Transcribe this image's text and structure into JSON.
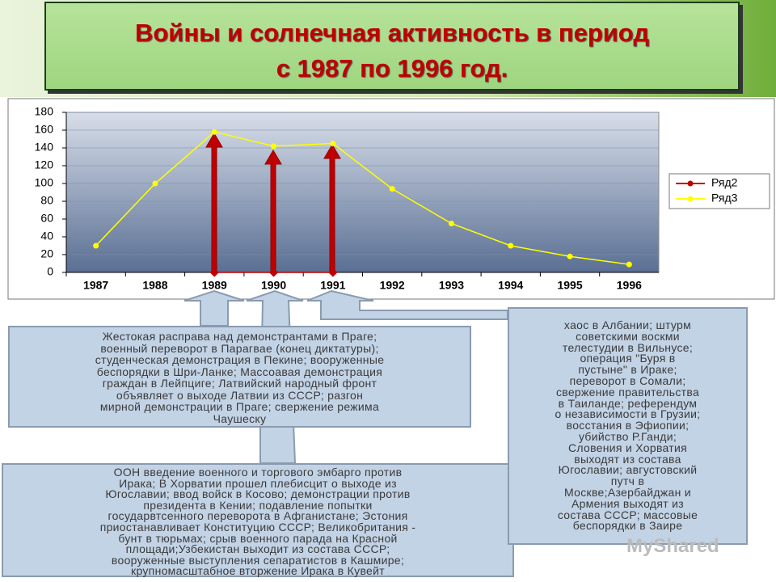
{
  "title": [
    "Войны и солнечная активность в период",
    "с 1987 по 1996 год."
  ],
  "chart_data": {
    "type": "line",
    "categories": [
      "1987",
      "1988",
      "1989",
      "1990",
      "1991",
      "1992",
      "1993",
      "1994",
      "1995",
      "1996"
    ],
    "series": [
      {
        "name": "Ряд2",
        "color": "#c00000",
        "values": [
          null,
          null,
          0,
          0,
          0,
          null,
          null,
          null,
          null,
          null
        ]
      },
      {
        "name": "Ряд3",
        "color": "#ffff00",
        "values": [
          30,
          100,
          158,
          142,
          145,
          94,
          55,
          30,
          18,
          9
        ]
      }
    ],
    "ylim": [
      0,
      180
    ],
    "yticks": [
      0,
      20,
      40,
      60,
      80,
      100,
      120,
      140,
      160,
      180
    ],
    "legend": "right"
  },
  "boxes": [
    [
      "Жестокая расправа над демонстрантами в Праге;",
      "военный переворот в Парагвае (конец диктатуры);",
      "студенческая демонстрация в Пекине; вооруженные",
      "беспорядки в Шри-Ланке; Массоавая демонстрация",
      "граждан в Лейпциге; Латвийский народный фронт",
      "объявляет о выходе Латвии из СССР; разгон",
      "мирной демонстрации в Праге; свержение режима",
      "Чаушеску"
    ],
    [
      "ООН введение военного и торгового эмбарго против",
      "Ирака; В Хорватии прошел плебисцит о выходе из",
      "Югославии; ввод войск в Косово; демонстрации против",
      "президента в Кении; подавление попытки",
      "государвтсенного переворота в Афганистане;  Эстония",
      "приостанавливает Конституцию СССР;  Великобритания -",
      "бунт в тюрьмах; срыв военного парада на Красной",
      "площади;Узбекистан выходит из состава СССР;",
      "вооруженные выступления сепаратистов в Кашмире;",
      "крупномасштабное вторжение Ирака в Кувейт"
    ],
    [
      "хаос в Албании; штурм",
      "советскими воскми",
      "телестудии в Вильнусе;",
      "операция \"Буря в",
      "пустыне\" в Ираке;",
      "переворот в Сомали;",
      "свержение правительства",
      "в Таиланде; референдум",
      "о независимости в Грузии;",
      "восстания в Эфиопии;",
      "убийство Р.Ганди;",
      "Словения и Хорватия",
      "выходят из состава",
      "Югославии; августовский",
      "путч в",
      "Москве;Азербайджан и",
      "Армения выходят из",
      "состава СССР; массовые",
      "беспорядки в Заире"
    ]
  ],
  "watermark": "MyShared"
}
